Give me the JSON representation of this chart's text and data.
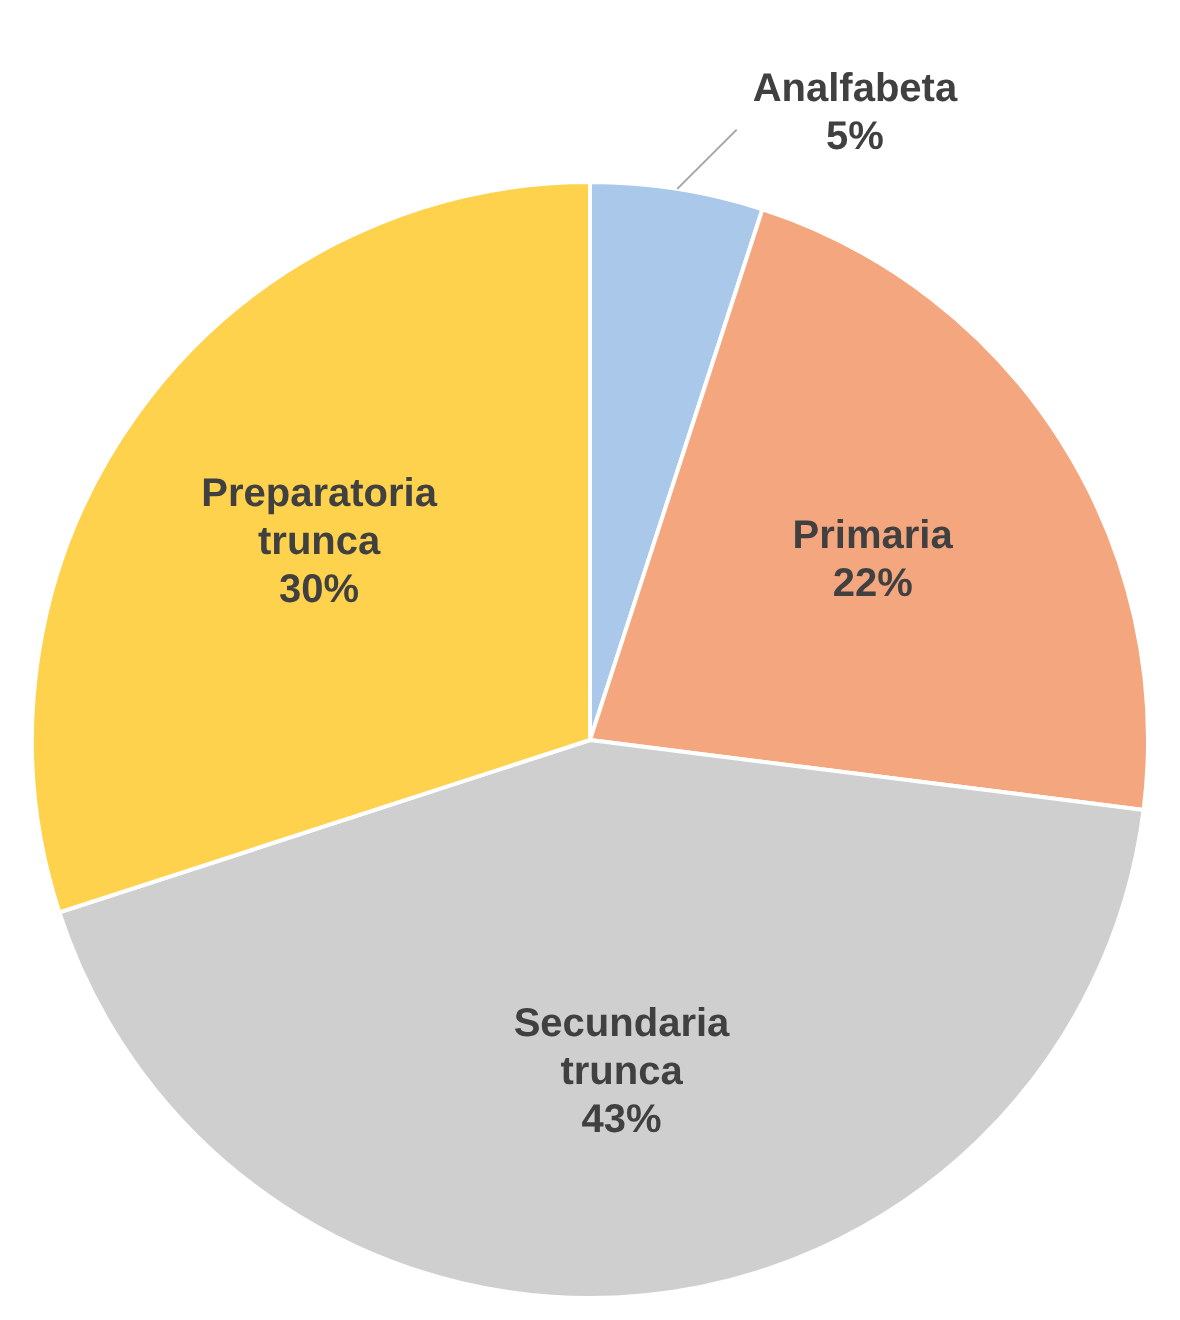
{
  "chart_data": {
    "type": "pie",
    "categories": [
      "Analfabeta",
      "Primaria",
      "Secundaria trunca",
      "Preparatoria trunca"
    ],
    "values": [
      5,
      22,
      43,
      30
    ],
    "colors": [
      "#a9c8ea",
      "#f4a77e",
      "#cfcfcf",
      "#ffd24d"
    ],
    "value_labels": [
      "5%",
      "22%",
      "43%",
      "30%"
    ],
    "legend": false
  }
}
